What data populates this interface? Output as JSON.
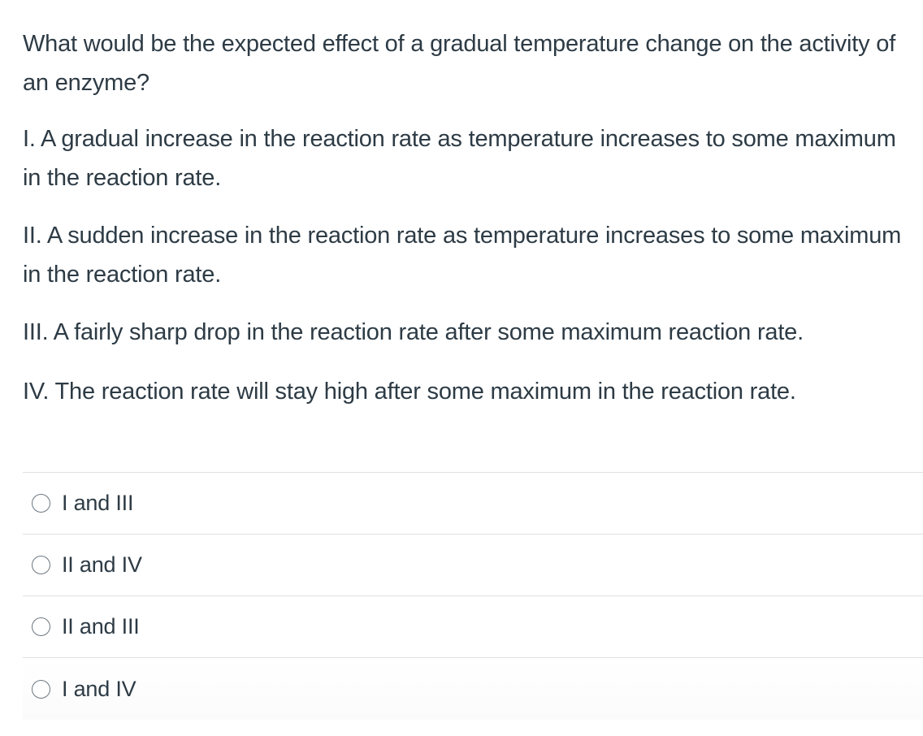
{
  "question": {
    "title": "What would be the expected effect of a gradual temperature change on the activity of an enzyme?",
    "statements": [
      "I. A gradual increase in the reaction rate as temperature increases to some maximum in the reaction rate.",
      "II. A sudden increase in the reaction rate as temperature increases to some maximum in the reaction rate.",
      "III. A fairly sharp drop in the reaction rate after some maximum reaction rate.",
      "IV. The reaction rate will stay high after some maximum in the reaction rate."
    ]
  },
  "answers": [
    {
      "label": "I and III",
      "selected": false
    },
    {
      "label": "II and IV",
      "selected": false
    },
    {
      "label": "II and III",
      "selected": false
    },
    {
      "label": "I and IV",
      "selected": false
    }
  ],
  "colors": {
    "text": "#2d3b45",
    "divider": "#dde0e3",
    "radio_border": "#6b7780"
  }
}
